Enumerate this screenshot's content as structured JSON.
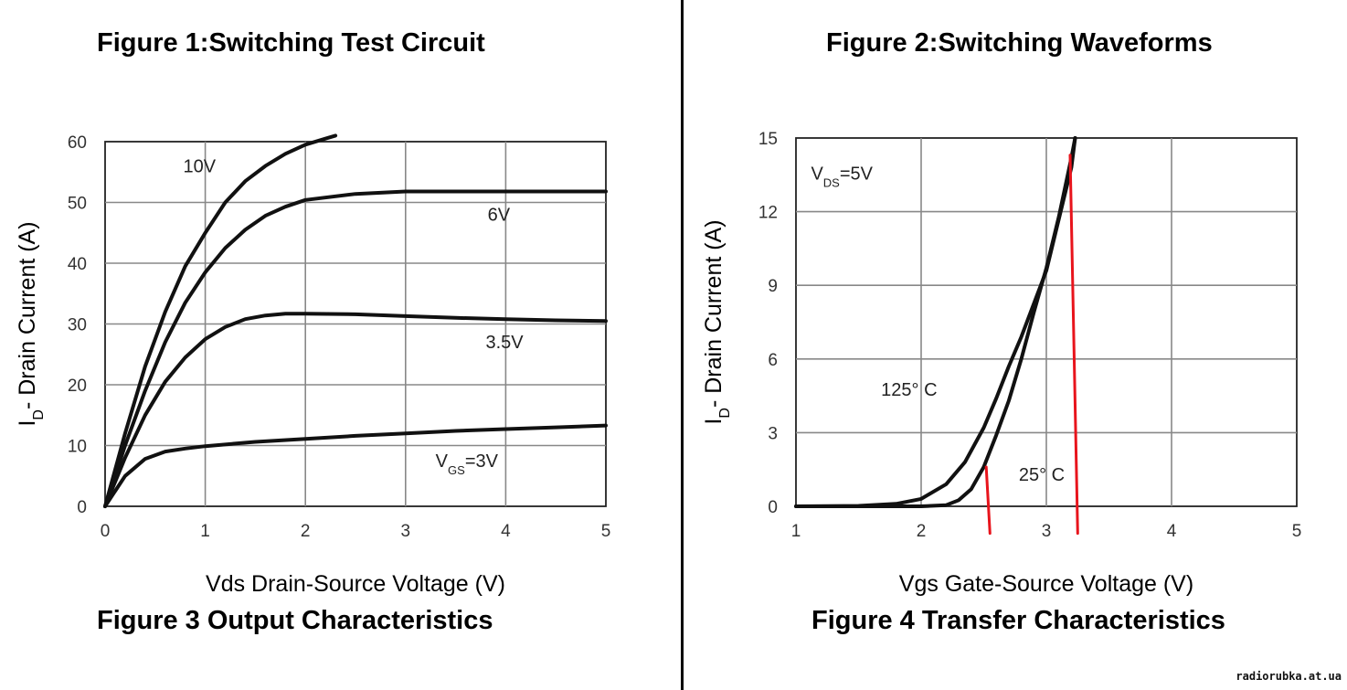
{
  "headings": {
    "fig1": "Figure 1:Switching Test Circuit",
    "fig2": "Figure 2:Switching Waveforms",
    "fig3": "Figure 3 Output Characteristics",
    "fig4": "Figure 4 Transfer Characteristics"
  },
  "watermark": "radiorubka.at.ua",
  "chart_data": [
    {
      "type": "line",
      "title": "Figure 3 Output Characteristics",
      "xlabel": "Vds Drain-Source Voltage (V)",
      "ylabel_main": "I",
      "ylabel_sub": "D",
      "ylabel_rest": "- Drain Current (A)",
      "xlim": [
        0,
        5
      ],
      "ylim": [
        0,
        60
      ],
      "xticks": [
        0,
        1,
        2,
        3,
        4,
        5
      ],
      "yticks": [
        0,
        10,
        20,
        30,
        40,
        50,
        60
      ],
      "grid": true,
      "series": [
        {
          "name": "10V",
          "x": [
            0,
            0.2,
            0.4,
            0.6,
            0.8,
            1.0,
            1.2,
            1.4,
            1.6,
            1.8,
            2.0,
            2.2,
            2.3
          ],
          "y": [
            0,
            12,
            23,
            32,
            39.5,
            45,
            50,
            53.5,
            56,
            58,
            59.5,
            60.5,
            61
          ]
        },
        {
          "name": "6V",
          "x": [
            0,
            0.2,
            0.4,
            0.6,
            0.8,
            1.0,
            1.2,
            1.4,
            1.6,
            1.8,
            2.0,
            2.5,
            3.0,
            4.0,
            5.0
          ],
          "y": [
            0,
            10,
            19,
            27,
            33.5,
            38.5,
            42.5,
            45.5,
            47.8,
            49.3,
            50.4,
            51.4,
            51.8,
            51.8,
            51.8
          ]
        },
        {
          "name": "3.5V",
          "x": [
            0,
            0.2,
            0.4,
            0.6,
            0.8,
            1.0,
            1.2,
            1.4,
            1.6,
            1.8,
            2.0,
            2.5,
            3.0,
            3.5,
            4.0,
            4.5,
            5.0
          ],
          "y": [
            0,
            8,
            15,
            20.5,
            24.5,
            27.5,
            29.5,
            30.8,
            31.4,
            31.7,
            31.7,
            31.6,
            31.3,
            31.0,
            30.8,
            30.6,
            30.5
          ]
        },
        {
          "name": "VGS=3V",
          "x": [
            0,
            0.2,
            0.4,
            0.6,
            0.8,
            1.0,
            1.5,
            2.0,
            2.5,
            3.0,
            3.5,
            4.0,
            4.5,
            5.0
          ],
          "y": [
            0,
            5,
            7.8,
            9,
            9.5,
            9.9,
            10.6,
            11.1,
            11.6,
            12.0,
            12.4,
            12.7,
            13.0,
            13.3
          ]
        }
      ],
      "annotations": [
        {
          "text": "10V",
          "x": 0.78,
          "y": 55
        },
        {
          "text": "6V",
          "x": 3.82,
          "y": 47
        },
        {
          "text": "3.5V",
          "x": 3.8,
          "y": 26
        },
        {
          "text_main": "V",
          "text_sub": "GS",
          "text_rest": "=3V",
          "x": 3.3,
          "y": 6.5
        }
      ]
    },
    {
      "type": "line",
      "title": "Figure 4 Transfer Characteristics",
      "xlabel": "Vgs Gate-Source Voltage (V)",
      "ylabel_main": "I",
      "ylabel_sub": "D",
      "ylabel_rest": "- Drain Current (A)",
      "xlim": [
        1,
        5
      ],
      "ylim": [
        0,
        15
      ],
      "xticks": [
        1,
        2,
        3,
        4,
        5
      ],
      "yticks": [
        0,
        3,
        6,
        9,
        12,
        15
      ],
      "grid": true,
      "series": [
        {
          "name": "125° C",
          "x": [
            1.0,
            1.5,
            1.8,
            2.0,
            2.2,
            2.35,
            2.5,
            2.6,
            2.7,
            2.8,
            3.0,
            3.2,
            3.23
          ],
          "y": [
            0,
            0.02,
            0.1,
            0.3,
            0.9,
            1.8,
            3.2,
            4.4,
            5.7,
            6.9,
            9.6,
            13.8,
            15
          ]
        },
        {
          "name": "25° C",
          "x": [
            1.0,
            2.0,
            2.2,
            2.3,
            2.4,
            2.5,
            2.6,
            2.7,
            2.8,
            2.9,
            3.0,
            3.1,
            3.2,
            3.23
          ],
          "y": [
            0,
            0,
            0.05,
            0.25,
            0.7,
            1.6,
            2.9,
            4.3,
            6.0,
            7.9,
            9.7,
            11.8,
            14.2,
            15
          ]
        },
        {
          "name": "marker-left",
          "x": [
            2.52,
            2.55
          ],
          "y": [
            1.6,
            -1.1
          ]
        },
        {
          "name": "marker-right",
          "x": [
            3.19,
            3.25
          ],
          "y": [
            14.3,
            -1.1
          ]
        }
      ],
      "colors": {
        "curve": "#111111",
        "marker": "#e8141c"
      },
      "annotations": [
        {
          "main": "V",
          "sub": "DS",
          "rest": "=5V",
          "x": 1.12,
          "y": 13.3
        },
        {
          "text": "125°  C",
          "x": 1.68,
          "y": 4.5
        },
        {
          "text": "25°  C",
          "x": 2.78,
          "y": 1.05
        }
      ]
    }
  ]
}
